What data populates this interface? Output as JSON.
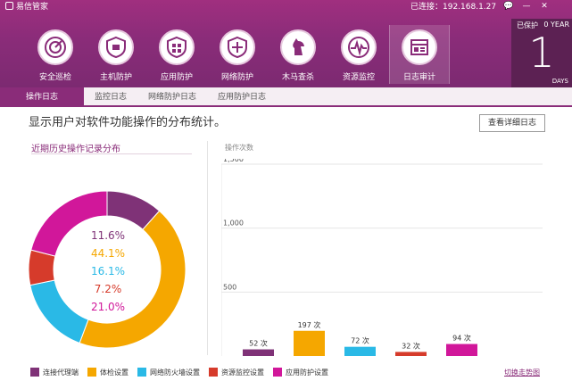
{
  "app": {
    "title": "易信管家",
    "connection": "已连接：192.168.1.27"
  },
  "window_controls": [
    "💬",
    "—",
    "✕"
  ],
  "nav": [
    {
      "label": "安全巡检",
      "icon": "radar-icon"
    },
    {
      "label": "主机防护",
      "icon": "shield-icon"
    },
    {
      "label": "应用防护",
      "icon": "app-shield-icon"
    },
    {
      "label": "网络防护",
      "icon": "network-shield-icon"
    },
    {
      "label": "木马查杀",
      "icon": "horse-icon"
    },
    {
      "label": "资源监控",
      "icon": "pulse-icon"
    },
    {
      "label": "日志审计",
      "icon": "log-icon"
    }
  ],
  "protect": {
    "label": "已保护",
    "years": "0 YEAR",
    "days": "1",
    "unit": "DAYS"
  },
  "tabs": [
    "操作日志",
    "监控日志",
    "网络防护日志",
    "应用防护日志"
  ],
  "main": {
    "title": "显示用户对软件功能操作的分布统计。",
    "detail_button": "查看详细日志",
    "history_title": "近期历史操作记录分布",
    "switch_link": "切换走势图"
  },
  "colors": {
    "accent": "#8a2c79",
    "categories": [
      "#7f3277",
      "#f5a700",
      "#2ab9e6",
      "#d63b2b",
      "#d1179a"
    ]
  },
  "chart_data": {
    "type": "bar",
    "ylabel": "操作次数",
    "ylim": [
      0,
      1500
    ],
    "yticks": [
      "500",
      "1,000",
      "1,500"
    ],
    "categories": [
      "连接代理端",
      "体检设置",
      "网络防火墙设置",
      "资源监控设置",
      "应用防护设置"
    ],
    "values": [
      52,
      197,
      72,
      32,
      94
    ],
    "value_labels": [
      "52 次",
      "197 次",
      "72 次",
      "32 次",
      "94 次"
    ],
    "pie": {
      "values": [
        11.6,
        44.1,
        16.1,
        7.2,
        21.0
      ],
      "labels": [
        "11.6%",
        "44.1%",
        "16.1%",
        "7.2%",
        "21.0%"
      ]
    }
  }
}
